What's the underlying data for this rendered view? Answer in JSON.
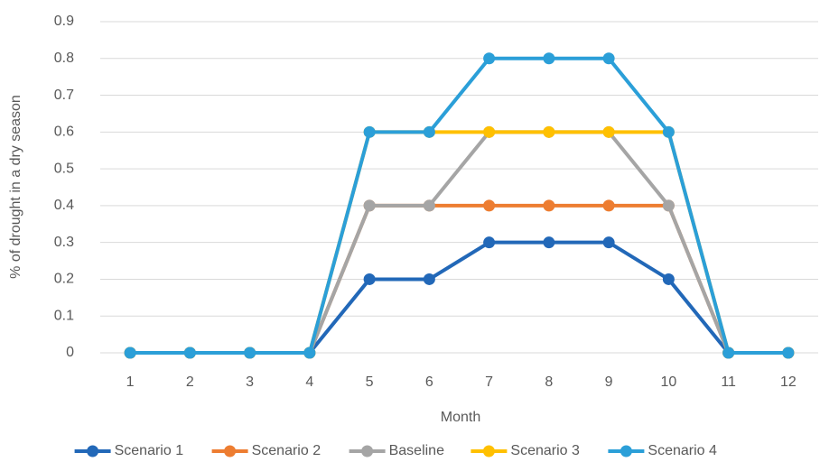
{
  "chart_data": {
    "type": "line",
    "x_label": "Month",
    "y_label": "% of drought in a dry season",
    "categories": [
      "1",
      "2",
      "3",
      "4",
      "5",
      "6",
      "7",
      "8",
      "9",
      "10",
      "11",
      "12"
    ],
    "series": [
      {
        "name": "Scenario 1",
        "color": "#2268b8",
        "values": [
          0,
          0,
          0,
          0,
          0.2,
          0.2,
          0.3,
          0.3,
          0.3,
          0.2,
          0,
          0
        ]
      },
      {
        "name": "Scenario 2",
        "color": "#ed7d31",
        "values": [
          0,
          0,
          0,
          0,
          0.4,
          0.4,
          0.4,
          0.4,
          0.4,
          0.4,
          0,
          0
        ]
      },
      {
        "name": "Baseline",
        "color": "#a5a5a5",
        "values": [
          0,
          0,
          0,
          0,
          0.4,
          0.4,
          0.6,
          0.6,
          0.6,
          0.4,
          0,
          0
        ]
      },
      {
        "name": "Scenario 3",
        "color": "#ffc000",
        "values": [
          0,
          0,
          0,
          0,
          0.6,
          0.6,
          0.6,
          0.6,
          0.6,
          0.6,
          0,
          0
        ]
      },
      {
        "name": "Scenario 4",
        "color": "#2b9fd8",
        "values": [
          0,
          0,
          0,
          0,
          0.6,
          0.6,
          0.8,
          0.8,
          0.8,
          0.6,
          0,
          0
        ]
      }
    ],
    "ylim": [
      0,
      0.9
    ],
    "yticks": [
      0,
      0.1,
      0.2,
      0.3,
      0.4,
      0.5,
      0.6,
      0.7,
      0.8,
      0.9
    ],
    "grid": true,
    "legend": "bottom"
  }
}
